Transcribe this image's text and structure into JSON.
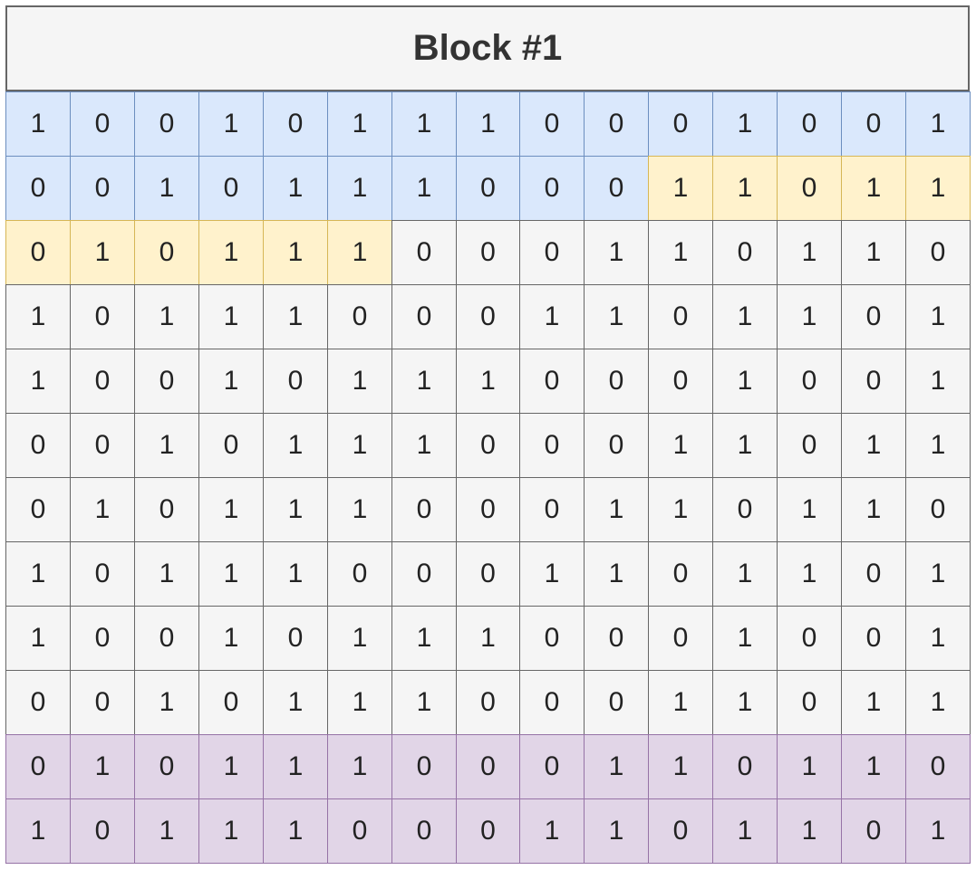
{
  "title": "Block #1",
  "styles": {
    "default": {
      "fill": "#f5f5f5",
      "stroke": "#666666"
    },
    "blue": {
      "fill": "#dae8fc",
      "stroke": "#6c8ebf"
    },
    "yellow": {
      "fill": "#fff2cc",
      "stroke": "#d6b656"
    },
    "purple": {
      "fill": "#e1d5e7",
      "stroke": "#9673a6"
    }
  },
  "rows": [
    [
      "1",
      "0",
      "0",
      "1",
      "0",
      "1",
      "1",
      "1",
      "0",
      "0",
      "0",
      "1",
      "0",
      "0",
      "1"
    ],
    [
      "0",
      "0",
      "1",
      "0",
      "1",
      "1",
      "1",
      "0",
      "0",
      "0",
      "1",
      "1",
      "0",
      "1",
      "1"
    ],
    [
      "0",
      "1",
      "0",
      "1",
      "1",
      "1",
      "0",
      "0",
      "0",
      "1",
      "1",
      "0",
      "1",
      "1",
      "0"
    ],
    [
      "1",
      "0",
      "1",
      "1",
      "1",
      "0",
      "0",
      "0",
      "1",
      "1",
      "0",
      "1",
      "1",
      "0",
      "1"
    ],
    [
      "1",
      "0",
      "0",
      "1",
      "0",
      "1",
      "1",
      "1",
      "0",
      "0",
      "0",
      "1",
      "0",
      "0",
      "1"
    ],
    [
      "0",
      "0",
      "1",
      "0",
      "1",
      "1",
      "1",
      "0",
      "0",
      "0",
      "1",
      "1",
      "0",
      "1",
      "1"
    ],
    [
      "0",
      "1",
      "0",
      "1",
      "1",
      "1",
      "0",
      "0",
      "0",
      "1",
      "1",
      "0",
      "1",
      "1",
      "0"
    ],
    [
      "1",
      "0",
      "1",
      "1",
      "1",
      "0",
      "0",
      "0",
      "1",
      "1",
      "0",
      "1",
      "1",
      "0",
      "1"
    ],
    [
      "1",
      "0",
      "0",
      "1",
      "0",
      "1",
      "1",
      "1",
      "0",
      "0",
      "0",
      "1",
      "0",
      "0",
      "1"
    ],
    [
      "0",
      "0",
      "1",
      "0",
      "1",
      "1",
      "1",
      "0",
      "0",
      "0",
      "1",
      "1",
      "0",
      "1",
      "1"
    ],
    [
      "0",
      "1",
      "0",
      "1",
      "1",
      "1",
      "0",
      "0",
      "0",
      "1",
      "1",
      "0",
      "1",
      "1",
      "0"
    ],
    [
      "1",
      "0",
      "1",
      "1",
      "1",
      "0",
      "0",
      "0",
      "1",
      "1",
      "0",
      "1",
      "1",
      "0",
      "1"
    ]
  ],
  "cell_styles": [
    [
      "blue",
      "blue",
      "blue",
      "blue",
      "blue",
      "blue",
      "blue",
      "blue",
      "blue",
      "blue",
      "blue",
      "blue",
      "blue",
      "blue",
      "blue"
    ],
    [
      "blue",
      "blue",
      "blue",
      "blue",
      "blue",
      "blue",
      "blue",
      "blue",
      "blue",
      "blue",
      "yellow",
      "yellow",
      "yellow",
      "yellow",
      "yellow"
    ],
    [
      "yellow",
      "yellow",
      "yellow",
      "yellow",
      "yellow",
      "yellow",
      "default",
      "default",
      "default",
      "default",
      "default",
      "default",
      "default",
      "default",
      "default"
    ],
    [
      "default",
      "default",
      "default",
      "default",
      "default",
      "default",
      "default",
      "default",
      "default",
      "default",
      "default",
      "default",
      "default",
      "default",
      "default"
    ],
    [
      "default",
      "default",
      "default",
      "default",
      "default",
      "default",
      "default",
      "default",
      "default",
      "default",
      "default",
      "default",
      "default",
      "default",
      "default"
    ],
    [
      "default",
      "default",
      "default",
      "default",
      "default",
      "default",
      "default",
      "default",
      "default",
      "default",
      "default",
      "default",
      "default",
      "default",
      "default"
    ],
    [
      "default",
      "default",
      "default",
      "default",
      "default",
      "default",
      "default",
      "default",
      "default",
      "default",
      "default",
      "default",
      "default",
      "default",
      "default"
    ],
    [
      "default",
      "default",
      "default",
      "default",
      "default",
      "default",
      "default",
      "default",
      "default",
      "default",
      "default",
      "default",
      "default",
      "default",
      "default"
    ],
    [
      "default",
      "default",
      "default",
      "default",
      "default",
      "default",
      "default",
      "default",
      "default",
      "default",
      "default",
      "default",
      "default",
      "default",
      "default"
    ],
    [
      "default",
      "default",
      "default",
      "default",
      "default",
      "default",
      "default",
      "default",
      "default",
      "default",
      "default",
      "default",
      "default",
      "default",
      "default"
    ],
    [
      "purple",
      "purple",
      "purple",
      "purple",
      "purple",
      "purple",
      "purple",
      "purple",
      "purple",
      "purple",
      "purple",
      "purple",
      "purple",
      "purple",
      "purple"
    ],
    [
      "purple",
      "purple",
      "purple",
      "purple",
      "purple",
      "purple",
      "purple",
      "purple",
      "purple",
      "purple",
      "purple",
      "purple",
      "purple",
      "purple",
      "purple"
    ]
  ]
}
